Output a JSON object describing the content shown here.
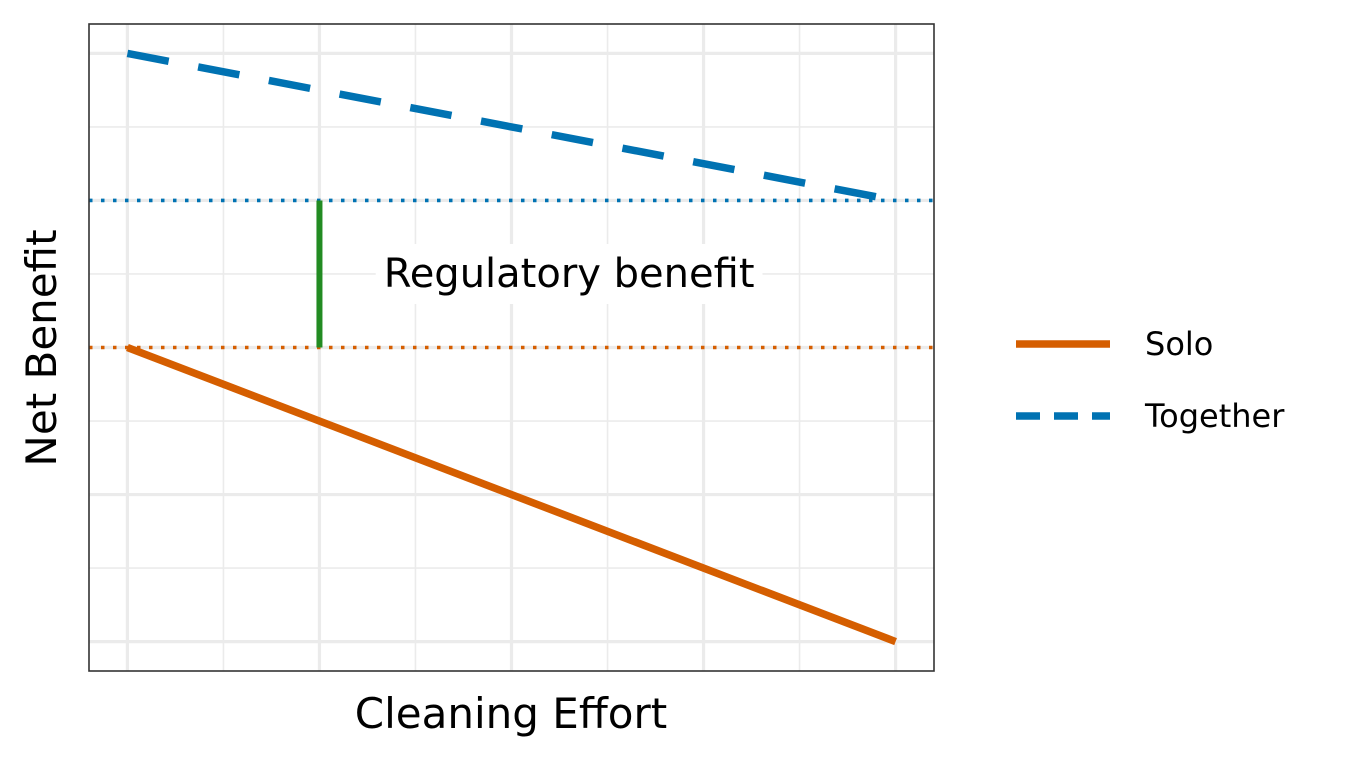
{
  "chart_data": {
    "type": "line",
    "xlabel": "Cleaning Effort",
    "ylabel": "Net Benefit",
    "xlim": [
      -0.2,
      4.2
    ],
    "ylim": [
      -0.2,
      4.2
    ],
    "x_major_ticks": [
      0,
      1,
      2,
      3,
      4
    ],
    "y_major_ticks": [
      0,
      1,
      2,
      3,
      4
    ],
    "tick_labels_shown": false,
    "grid": true,
    "legend_position": "right",
    "series": [
      {
        "name": "Solo",
        "x": [
          0,
          4
        ],
        "y": [
          2,
          0
        ],
        "color": "#D55E00",
        "style": "solid"
      },
      {
        "name": "Together",
        "x": [
          0,
          4
        ],
        "y": [
          4,
          3
        ],
        "color": "#0072B2",
        "style": "dashed"
      }
    ],
    "reference_lines": [
      {
        "axis": "y",
        "value": 3,
        "color": "#0072B2",
        "style": "dotted"
      },
      {
        "axis": "y",
        "value": 2,
        "color": "#D55E00",
        "style": "dotted"
      }
    ],
    "segments": [
      {
        "x": 1,
        "y_from": 2,
        "y_to": 3,
        "color": "#228B22"
      }
    ],
    "annotations": [
      {
        "text": "Regulatory benefit",
        "x": 2.3,
        "y": 2.5
      }
    ]
  }
}
